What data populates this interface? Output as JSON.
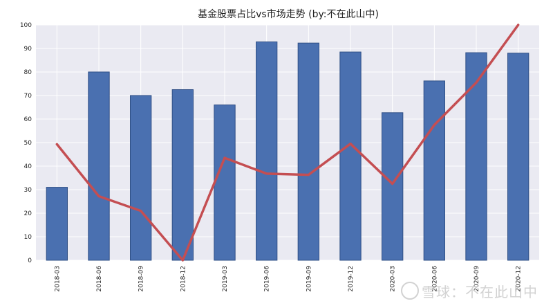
{
  "chart_data": {
    "type": "bar",
    "title": "基金股票占比vs市场走势  (by:不在此山中)",
    "categories": [
      "2018-03",
      "2018-06",
      "2018-09",
      "2018-12",
      "2019-03",
      "2019-06",
      "2019-09",
      "2019-12",
      "2020-03",
      "2020-06",
      "2020-09",
      "2020-12"
    ],
    "series": [
      {
        "kind": "bar",
        "values": [
          31,
          80,
          70,
          72.5,
          66,
          92.8,
          92.3,
          88.5,
          62.7,
          76.2,
          88.2,
          88
        ]
      },
      {
        "kind": "line",
        "values": [
          49.3,
          27.2,
          21,
          0,
          43.5,
          36.8,
          36.3,
          49.5,
          32.5,
          57.5,
          75.5,
          100
        ]
      }
    ],
    "ylim": [
      0,
      100
    ],
    "yticks": [
      0,
      10,
      20,
      30,
      40,
      50,
      60,
      70,
      80,
      90,
      100
    ],
    "grid": true,
    "colors": {
      "bar": "#4a70b0",
      "bar_edge": "#2f4f85",
      "line": "#c44e52",
      "plot_bg": "#eaeaf2",
      "grid": "#ffffff"
    }
  },
  "watermark": {
    "text": "雪球：不在此山中"
  }
}
